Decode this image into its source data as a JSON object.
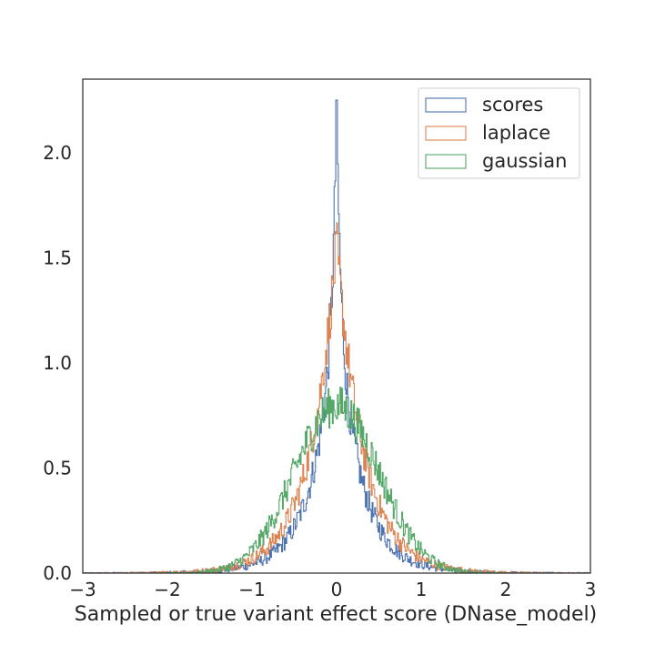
{
  "chart_data": {
    "type": "histogram",
    "title": "",
    "xlabel": "Sampled or true variant effect score (DNase_model)",
    "ylabel": "",
    "xlim": [
      -3,
      3
    ],
    "ylim": [
      0,
      2.35
    ],
    "x_ticks": [
      -3,
      -2,
      -1,
      0,
      1,
      2,
      3
    ],
    "x_tick_labels": [
      "−3",
      "−2",
      "−1",
      "0",
      "1",
      "2",
      "3"
    ],
    "y_ticks": [
      0.0,
      0.5,
      1.0,
      1.5,
      2.0
    ],
    "y_tick_labels": [
      "0.0",
      "0.5",
      "1.0",
      "1.5",
      "2.0"
    ],
    "histtype": "step",
    "density": true,
    "grid": false,
    "legend_position": "top-right",
    "series": [
      {
        "name": "scores",
        "color": "#4c72b0",
        "distribution": "heavy-tailed",
        "peak_x": 0.0,
        "peak_density": 2.25
      },
      {
        "name": "laplace",
        "color": "#dd8452",
        "distribution": "laplace",
        "loc": 0.0,
        "scale": 0.32
      },
      {
        "name": "gaussian",
        "color": "#55a868",
        "distribution": "normal",
        "mean": 0.0,
        "std": 0.5
      }
    ]
  }
}
